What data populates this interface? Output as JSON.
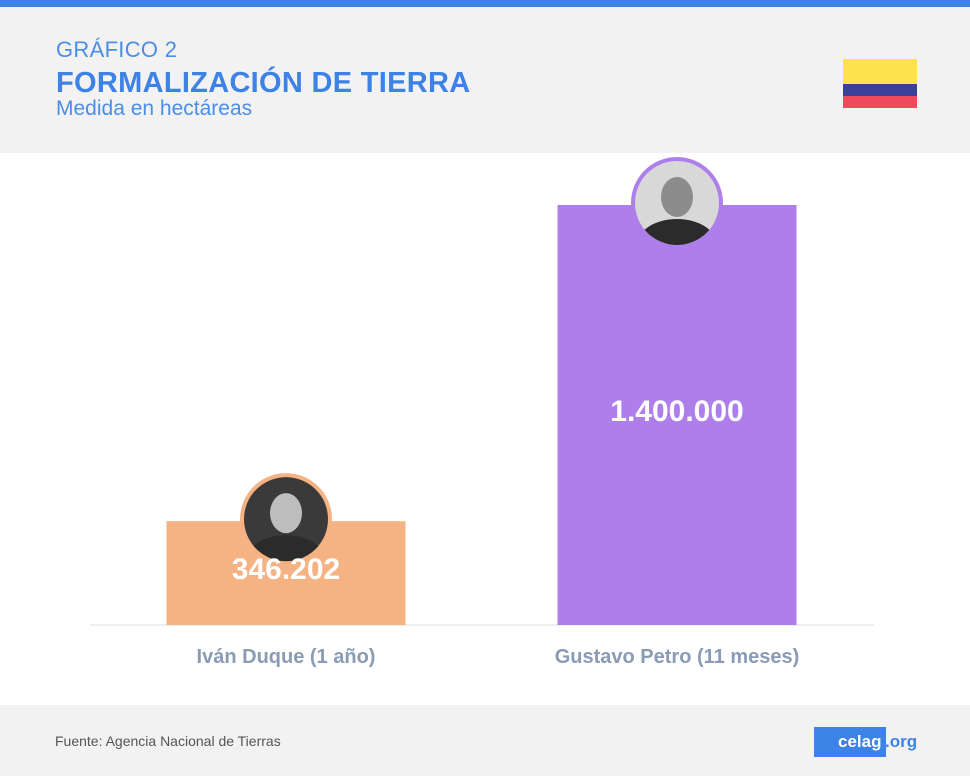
{
  "header": {
    "kicker": "GRÁFICO 2",
    "title": "FORMALIZACIÓN DE TIERRA",
    "subtitle": "Medida en hectáreas",
    "flag": {
      "name": "colombia-flag",
      "colors": [
        "#ffe14d",
        "#3a3f9a",
        "#ef4a5a"
      ]
    }
  },
  "colors": {
    "accent": "#4a8ee8",
    "title_blue": "#3d82e6",
    "top_bar": "#3d82e6",
    "duque_bar": "#f5b283",
    "petro_bar": "#ae7fea",
    "category_label": "#8a9bb4",
    "brand_box": "#3d82e6"
  },
  "chart_data": {
    "type": "bar",
    "categories": [
      "Iván Duque (1 año)",
      "Gustavo Petro (11 meses)"
    ],
    "values": [
      346202,
      1400000
    ],
    "value_labels": [
      "346.202",
      "1.400.000"
    ],
    "bar_colors": [
      "#f5b283",
      "#ae7fea"
    ],
    "avatars": [
      "duque-portrait",
      "petro-portrait"
    ],
    "grid": false,
    "legend": "none",
    "ylim": [
      0,
      1500000
    ]
  },
  "footer": {
    "source": "Fuente: Agencia Nacional de Tierras",
    "brand_main": "celag",
    "brand_tld": ".org"
  }
}
